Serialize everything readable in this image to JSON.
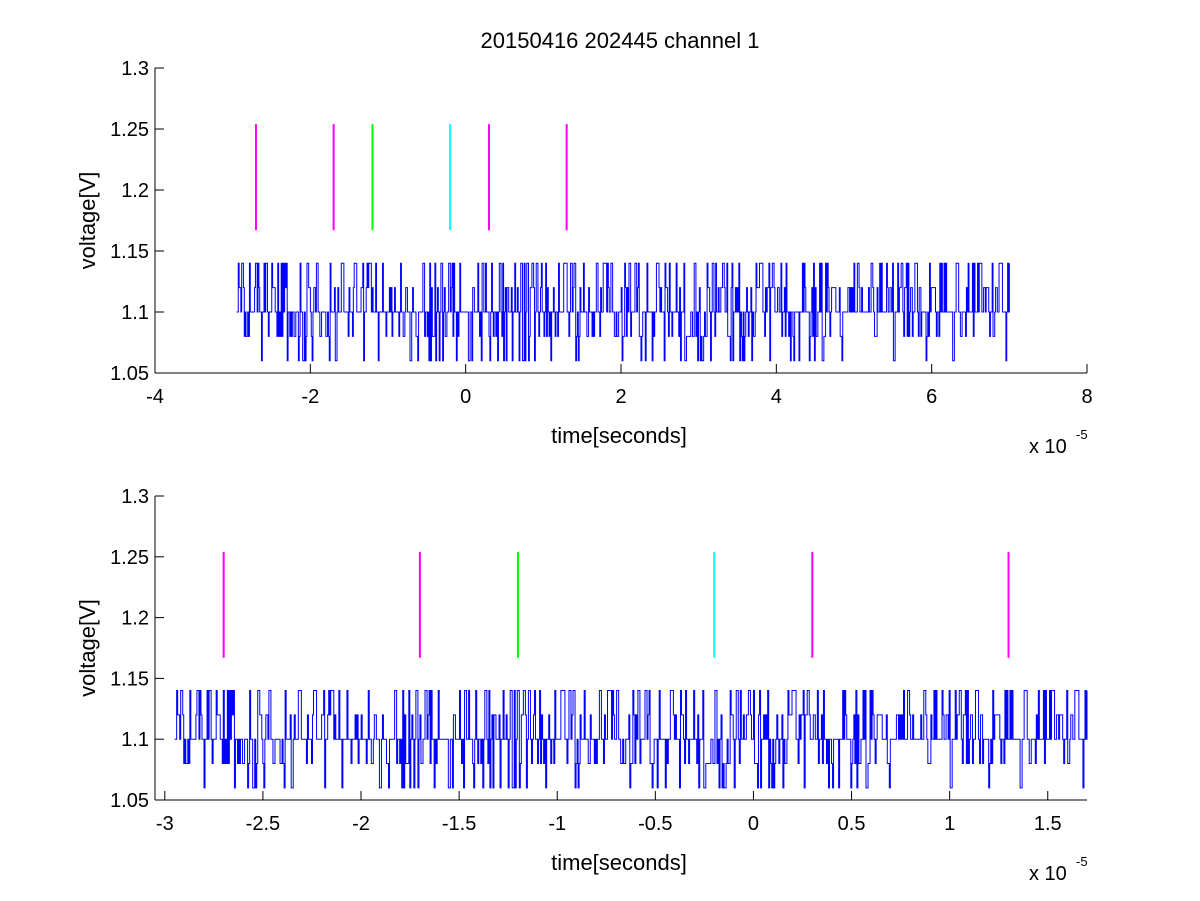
{
  "figure": {
    "title": "20150416 202445 channel 1"
  },
  "chart_data": [
    {
      "type": "line",
      "xlabel": "time[seconds]",
      "ylabel": "voltage[V]",
      "x_multiplier_label": "x 10",
      "x_multiplier_exponent": "-5",
      "xlim": [
        -4,
        8
      ],
      "ylim": [
        1.05,
        1.3
      ],
      "xticks": [
        -4,
        -2,
        0,
        2,
        4,
        6,
        8
      ],
      "xtick_labels": [
        "-4",
        "-2",
        "0",
        "2",
        "4",
        "6",
        "8"
      ],
      "yticks": [
        1.05,
        1.1,
        1.15,
        1.2,
        1.25,
        1.3
      ],
      "ytick_labels": [
        "1.05",
        "1.1",
        "1.15",
        "1.2",
        "1.25",
        "1.3"
      ],
      "grid": false,
      "signal": {
        "color": "#0000ff",
        "x_start": -2.95,
        "x_end": 7.0,
        "levels": [
          1.06,
          1.08,
          1.1,
          1.12,
          1.14
        ],
        "baseline": 1.1
      },
      "markers": [
        {
          "x": -2.7,
          "y_range": [
            1.167,
            1.254
          ],
          "color": "#ff00ff"
        },
        {
          "x": -1.7,
          "y_range": [
            1.167,
            1.254
          ],
          "color": "#ff00ff"
        },
        {
          "x": -1.2,
          "y_range": [
            1.167,
            1.254
          ],
          "color": "#00ff00"
        },
        {
          "x": -0.2,
          "y_range": [
            1.167,
            1.254
          ],
          "color": "#00ffff"
        },
        {
          "x": 0.3,
          "y_range": [
            1.167,
            1.254
          ],
          "color": "#ff00ff"
        },
        {
          "x": 1.3,
          "y_range": [
            1.167,
            1.254
          ],
          "color": "#ff00ff"
        }
      ]
    },
    {
      "type": "line",
      "xlabel": "time[seconds]",
      "ylabel": "voltage[V]",
      "x_multiplier_label": "x 10",
      "x_multiplier_exponent": "-5",
      "xlim": [
        -3.05,
        1.7
      ],
      "ylim": [
        1.05,
        1.3
      ],
      "xticks": [
        -3,
        -2.5,
        -2,
        -1.5,
        -1,
        -0.5,
        0,
        0.5,
        1,
        1.5
      ],
      "xtick_labels": [
        "-3",
        "-2.5",
        "-2",
        "-1.5",
        "-1",
        "-0.5",
        "0",
        "0.5",
        "1",
        "1.5"
      ],
      "yticks": [
        1.05,
        1.1,
        1.15,
        1.2,
        1.25,
        1.3
      ],
      "ytick_labels": [
        "1.05",
        "1.1",
        "1.15",
        "1.2",
        "1.25",
        "1.3"
      ],
      "grid": false,
      "signal": {
        "color": "#0000ff",
        "x_start": -2.95,
        "x_end": 1.7,
        "levels": [
          1.06,
          1.08,
          1.1,
          1.12,
          1.14
        ],
        "baseline": 1.1
      },
      "markers": [
        {
          "x": -2.7,
          "y_range": [
            1.167,
            1.254
          ],
          "color": "#ff00ff"
        },
        {
          "x": -1.7,
          "y_range": [
            1.167,
            1.254
          ],
          "color": "#ff00ff"
        },
        {
          "x": -1.2,
          "y_range": [
            1.167,
            1.254
          ],
          "color": "#00ff00"
        },
        {
          "x": -0.2,
          "y_range": [
            1.167,
            1.254
          ],
          "color": "#00ffff"
        },
        {
          "x": 0.3,
          "y_range": [
            1.167,
            1.254
          ],
          "color": "#ff00ff"
        },
        {
          "x": 1.3,
          "y_range": [
            1.167,
            1.254
          ],
          "color": "#ff00ff"
        }
      ]
    }
  ]
}
